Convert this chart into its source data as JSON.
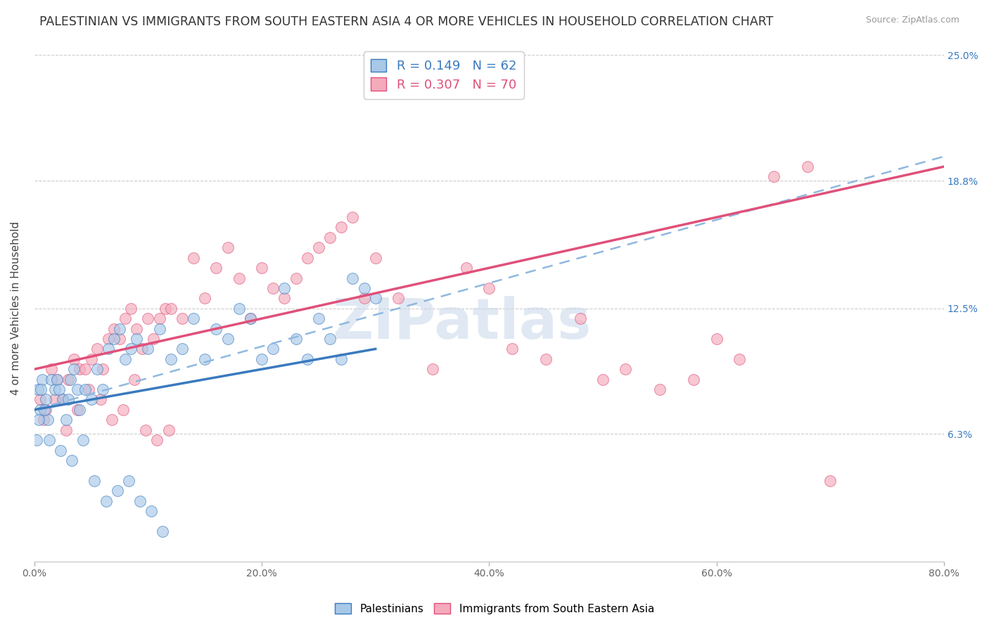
{
  "title": "PALESTINIAN VS IMMIGRANTS FROM SOUTH EASTERN ASIA 4 OR MORE VEHICLES IN HOUSEHOLD CORRELATION CHART",
  "source": "Source: ZipAtlas.com",
  "ylabel": "4 or more Vehicles in Household",
  "series1_label": "Palestinians",
  "series2_label": "Immigrants from South Eastern Asia",
  "R1": 0.149,
  "N1": 62,
  "R2": 0.307,
  "N2": 70,
  "color1": "#a8c8e8",
  "color2": "#f4aabb",
  "line1_color": "#3a7abf",
  "line2_color": "#e0507a",
  "line1_dash_color": "#90b8e0",
  "xlim": [
    0.0,
    80.0
  ],
  "ylim": [
    0.0,
    25.0
  ],
  "yticks": [
    0.0,
    6.3,
    12.5,
    18.8,
    25.0
  ],
  "xticks": [
    0.0,
    20.0,
    40.0,
    60.0,
    80.0
  ],
  "xtick_labels": [
    "0.0%",
    "20.0%",
    "40.0%",
    "60.0%",
    "80.0%"
  ],
  "ytick_labels": [
    "",
    "6.3%",
    "12.5%",
    "18.8%",
    "25.0%"
  ],
  "watermark": "ZIPatlas",
  "background_color": "#ffffff",
  "title_fontsize": 12.5,
  "axis_fontsize": 11,
  "tick_fontsize": 10,
  "blue_line_x0": 0.0,
  "blue_line_y0": 7.5,
  "blue_line_x1": 30.0,
  "blue_line_y1": 10.5,
  "blue_dash_x0": 0.0,
  "blue_dash_y0": 7.5,
  "blue_dash_x1": 80.0,
  "blue_dash_y1": 20.0,
  "pink_line_x0": 0.0,
  "pink_line_y0": 9.5,
  "pink_line_x1": 80.0,
  "pink_line_y1": 19.5,
  "series1_x": [
    0.3,
    0.5,
    0.7,
    1.0,
    1.2,
    1.5,
    1.8,
    2.0,
    2.2,
    2.5,
    2.8,
    3.0,
    3.2,
    3.5,
    3.8,
    4.0,
    4.5,
    5.0,
    5.5,
    6.0,
    6.5,
    7.0,
    7.5,
    8.0,
    8.5,
    9.0,
    10.0,
    11.0,
    12.0,
    13.0,
    14.0,
    15.0,
    16.0,
    17.0,
    18.0,
    19.0,
    20.0,
    21.0,
    22.0,
    23.0,
    24.0,
    25.0,
    26.0,
    27.0,
    28.0,
    29.0,
    30.0,
    0.2,
    0.4,
    0.6,
    0.9,
    1.3,
    2.3,
    3.3,
    4.3,
    5.3,
    6.3,
    7.3,
    8.3,
    9.3,
    10.3,
    11.3
  ],
  "series1_y": [
    8.5,
    7.5,
    9.0,
    8.0,
    7.0,
    9.0,
    8.5,
    9.0,
    8.5,
    8.0,
    7.0,
    8.0,
    9.0,
    9.5,
    8.5,
    7.5,
    8.5,
    8.0,
    9.5,
    8.5,
    10.5,
    11.0,
    11.5,
    10.0,
    10.5,
    11.0,
    10.5,
    11.5,
    10.0,
    10.5,
    12.0,
    10.0,
    11.5,
    11.0,
    12.5,
    12.0,
    10.0,
    10.5,
    13.5,
    11.0,
    10.0,
    12.0,
    11.0,
    10.0,
    14.0,
    13.5,
    13.0,
    6.0,
    7.0,
    8.5,
    7.5,
    6.0,
    5.5,
    5.0,
    6.0,
    4.0,
    3.0,
    3.5,
    4.0,
    3.0,
    2.5,
    1.5
  ],
  "series2_x": [
    0.5,
    1.0,
    1.5,
    2.0,
    2.5,
    3.0,
    3.5,
    4.0,
    4.5,
    5.0,
    5.5,
    6.0,
    6.5,
    7.0,
    7.5,
    8.0,
    8.5,
    9.0,
    9.5,
    10.0,
    10.5,
    11.0,
    11.5,
    12.0,
    13.0,
    14.0,
    15.0,
    16.0,
    17.0,
    18.0,
    19.0,
    20.0,
    21.0,
    22.0,
    23.0,
    24.0,
    25.0,
    26.0,
    27.0,
    28.0,
    29.0,
    30.0,
    32.0,
    35.0,
    38.0,
    40.0,
    42.0,
    45.0,
    48.0,
    50.0,
    52.0,
    55.0,
    58.0,
    60.0,
    62.0,
    65.0,
    68.0,
    70.0,
    0.8,
    1.8,
    2.8,
    3.8,
    4.8,
    5.8,
    6.8,
    7.8,
    8.8,
    9.8,
    10.8,
    11.8
  ],
  "series2_y": [
    8.0,
    7.5,
    9.5,
    9.0,
    8.0,
    9.0,
    10.0,
    9.5,
    9.5,
    10.0,
    10.5,
    9.5,
    11.0,
    11.5,
    11.0,
    12.0,
    12.5,
    11.5,
    10.5,
    12.0,
    11.0,
    12.0,
    12.5,
    12.5,
    12.0,
    15.0,
    13.0,
    14.5,
    15.5,
    14.0,
    12.0,
    14.5,
    13.5,
    13.0,
    14.0,
    15.0,
    15.5,
    16.0,
    16.5,
    17.0,
    13.0,
    15.0,
    13.0,
    9.5,
    14.5,
    13.5,
    10.5,
    10.0,
    12.0,
    9.0,
    9.5,
    8.5,
    9.0,
    11.0,
    10.0,
    19.0,
    19.5,
    4.0,
    7.0,
    8.0,
    6.5,
    7.5,
    8.5,
    8.0,
    7.0,
    7.5,
    9.0,
    6.5,
    6.0,
    6.5
  ]
}
